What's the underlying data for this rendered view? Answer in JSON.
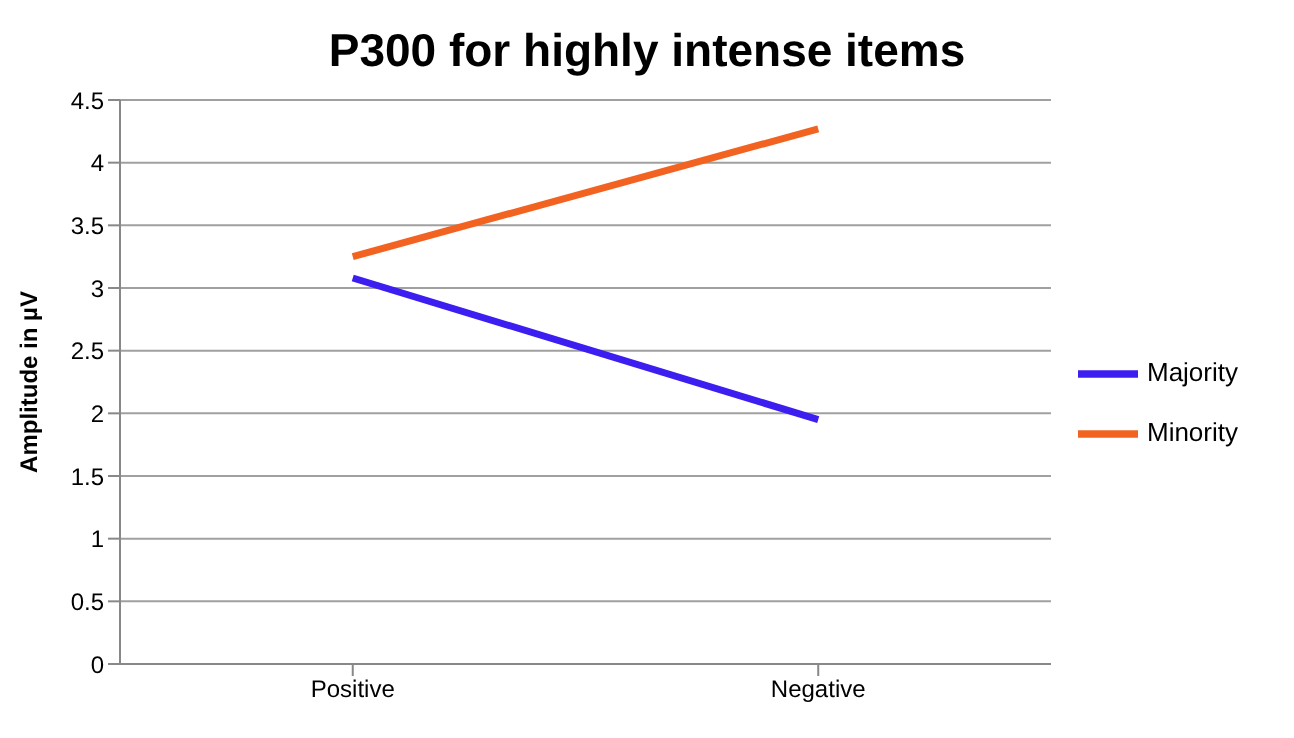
{
  "chart_data": {
    "type": "line",
    "title": "P300 for highly intense items",
    "ylabel": "Amplitude in µV",
    "categories": [
      "Positive",
      "Negative"
    ],
    "series": [
      {
        "name": "Majority",
        "color": "#3c1ef0",
        "values": [
          3.08,
          1.95
        ]
      },
      {
        "name": "Minority",
        "color": "#f26322",
        "values": [
          3.25,
          4.27
        ]
      }
    ],
    "ylim": [
      0,
      4.5
    ],
    "yticks": [
      0,
      0.5,
      1,
      1.5,
      2,
      2.5,
      3,
      3.5,
      4,
      4.5
    ],
    "grid": "y",
    "legend": "right",
    "marker": "none",
    "line_style": "solid"
  }
}
